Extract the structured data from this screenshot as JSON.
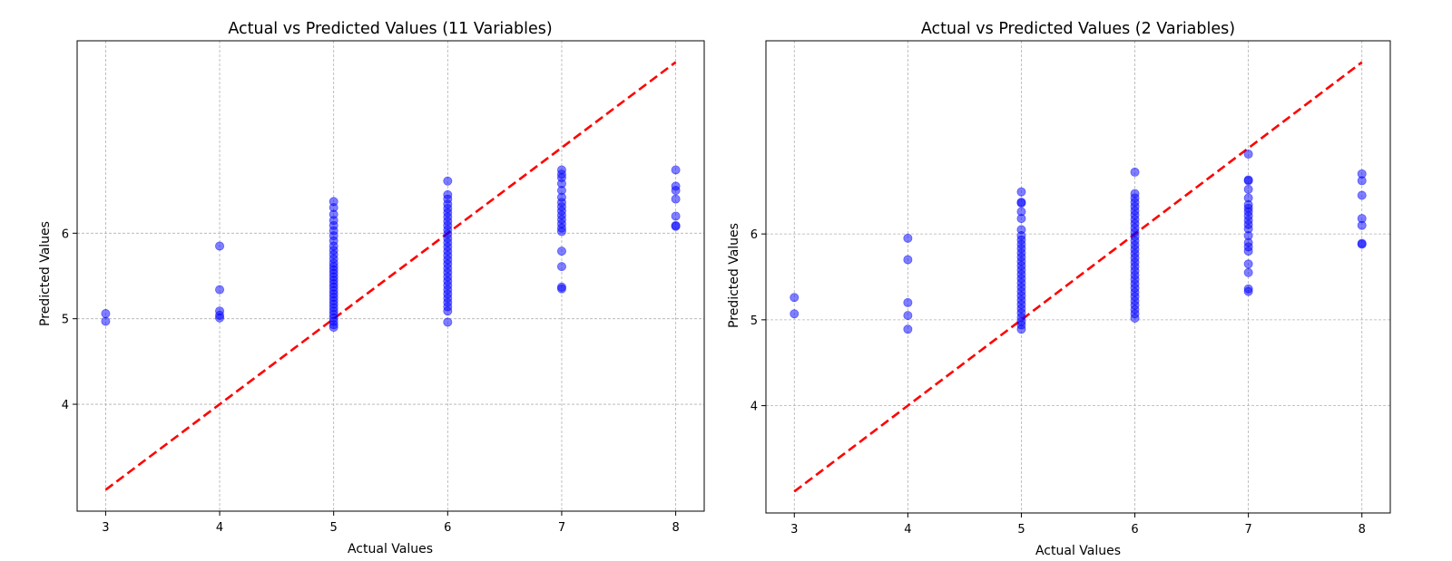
{
  "chart_data": [
    {
      "type": "scatter",
      "title": "Actual vs Predicted Values (11 Variables)",
      "xlabel": "Actual Values",
      "ylabel": "Predicted Values",
      "xlim": [
        2.75,
        8.25
      ],
      "ylim": [
        2.75,
        8.25
      ],
      "xticks": [
        3,
        4,
        5,
        6,
        7,
        8
      ],
      "yticks": [
        4,
        5,
        6
      ],
      "grid": true,
      "point_color": "#0000ff",
      "line_color": "#ff0000",
      "reference_line": {
        "style": "dashed",
        "from": [
          3,
          3
        ],
        "to": [
          8,
          8
        ]
      },
      "series": [
        {
          "points": [
            [
              3,
              5.06
            ],
            [
              3,
              4.97
            ],
            [
              4,
              5.85
            ],
            [
              4,
              5.34
            ],
            [
              4,
              5.09
            ],
            [
              4,
              5.04
            ],
            [
              4,
              5.01
            ],
            [
              5,
              6.37
            ],
            [
              5,
              6.3
            ],
            [
              5,
              6.22
            ],
            [
              5,
              6.15
            ],
            [
              5,
              6.09
            ],
            [
              5,
              6.03
            ],
            [
              5,
              5.97
            ],
            [
              5,
              5.91
            ],
            [
              5,
              5.85
            ],
            [
              5,
              5.8
            ],
            [
              5,
              5.75
            ],
            [
              5,
              5.7
            ],
            [
              5,
              5.65
            ],
            [
              5,
              5.61
            ],
            [
              5,
              5.57
            ],
            [
              5,
              5.53
            ],
            [
              5,
              5.49
            ],
            [
              5,
              5.45
            ],
            [
              5,
              5.41
            ],
            [
              5,
              5.37
            ],
            [
              5,
              5.33
            ],
            [
              5,
              5.29
            ],
            [
              5,
              5.25
            ],
            [
              5,
              5.21
            ],
            [
              5,
              5.17
            ],
            [
              5,
              5.13
            ],
            [
              5,
              5.09
            ],
            [
              5,
              5.05
            ],
            [
              5,
              5.01
            ],
            [
              5,
              4.97
            ],
            [
              5,
              4.93
            ],
            [
              5,
              4.9
            ],
            [
              6,
              6.61
            ],
            [
              6,
              6.45
            ],
            [
              6,
              6.4
            ],
            [
              6,
              6.34
            ],
            [
              6,
              6.29
            ],
            [
              6,
              6.24
            ],
            [
              6,
              6.19
            ],
            [
              6,
              6.14
            ],
            [
              6,
              6.09
            ],
            [
              6,
              6.04
            ],
            [
              6,
              5.99
            ],
            [
              6,
              5.94
            ],
            [
              6,
              5.89
            ],
            [
              6,
              5.84
            ],
            [
              6,
              5.79
            ],
            [
              6,
              5.74
            ],
            [
              6,
              5.69
            ],
            [
              6,
              5.64
            ],
            [
              6,
              5.59
            ],
            [
              6,
              5.54
            ],
            [
              6,
              5.49
            ],
            [
              6,
              5.44
            ],
            [
              6,
              5.39
            ],
            [
              6,
              5.34
            ],
            [
              6,
              5.29
            ],
            [
              6,
              5.24
            ],
            [
              6,
              5.19
            ],
            [
              6,
              5.14
            ],
            [
              6,
              5.09
            ],
            [
              6,
              4.96
            ],
            [
              7,
              6.74
            ],
            [
              7,
              6.69
            ],
            [
              7,
              6.65
            ],
            [
              7,
              6.58
            ],
            [
              7,
              6.5
            ],
            [
              7,
              6.42
            ],
            [
              7,
              6.36
            ],
            [
              7,
              6.31
            ],
            [
              7,
              6.26
            ],
            [
              7,
              6.21
            ],
            [
              7,
              6.16
            ],
            [
              7,
              6.11
            ],
            [
              7,
              6.06
            ],
            [
              7,
              6.02
            ],
            [
              7,
              5.79
            ],
            [
              7,
              5.61
            ],
            [
              7,
              5.37
            ],
            [
              7,
              5.35
            ],
            [
              8,
              6.74
            ],
            [
              8,
              6.55
            ],
            [
              8,
              6.5
            ],
            [
              8,
              6.4
            ],
            [
              8,
              6.2
            ],
            [
              8,
              6.09
            ],
            [
              8,
              6.08
            ]
          ]
        }
      ]
    },
    {
      "type": "scatter",
      "title": "Actual vs Predicted Values (2 Variables)",
      "xlabel": "Actual Values",
      "ylabel": "Predicted Values",
      "xlim": [
        2.75,
        8.25
      ],
      "ylim": [
        2.75,
        8.25
      ],
      "xticks": [
        3,
        4,
        5,
        6,
        7,
        8
      ],
      "yticks": [
        4,
        5,
        6
      ],
      "grid": true,
      "point_color": "#0000ff",
      "line_color": "#ff0000",
      "reference_line": {
        "style": "dashed",
        "from": [
          3,
          3
        ],
        "to": [
          8,
          8
        ]
      },
      "series": [
        {
          "points": [
            [
              3,
              5.26
            ],
            [
              3,
              5.07
            ],
            [
              4,
              5.95
            ],
            [
              4,
              5.7
            ],
            [
              4,
              5.2
            ],
            [
              4,
              5.05
            ],
            [
              4,
              4.89
            ],
            [
              5,
              6.49
            ],
            [
              5,
              6.37
            ],
            [
              5,
              6.36
            ],
            [
              5,
              6.26
            ],
            [
              5,
              6.18
            ],
            [
              5,
              6.05
            ],
            [
              5,
              5.98
            ],
            [
              5,
              5.93
            ],
            [
              5,
              5.88
            ],
            [
              5,
              5.83
            ],
            [
              5,
              5.78
            ],
            [
              5,
              5.73
            ],
            [
              5,
              5.68
            ],
            [
              5,
              5.63
            ],
            [
              5,
              5.58
            ],
            [
              5,
              5.53
            ],
            [
              5,
              5.48
            ],
            [
              5,
              5.43
            ],
            [
              5,
              5.38
            ],
            [
              5,
              5.33
            ],
            [
              5,
              5.28
            ],
            [
              5,
              5.23
            ],
            [
              5,
              5.18
            ],
            [
              5,
              5.13
            ],
            [
              5,
              5.08
            ],
            [
              5,
              5.03
            ],
            [
              5,
              4.98
            ],
            [
              5,
              4.94
            ],
            [
              5,
              4.89
            ],
            [
              6,
              6.72
            ],
            [
              6,
              6.47
            ],
            [
              6,
              6.42
            ],
            [
              6,
              6.37
            ],
            [
              6,
              6.32
            ],
            [
              6,
              6.27
            ],
            [
              6,
              6.22
            ],
            [
              6,
              6.17
            ],
            [
              6,
              6.12
            ],
            [
              6,
              6.07
            ],
            [
              6,
              6.02
            ],
            [
              6,
              5.97
            ],
            [
              6,
              5.92
            ],
            [
              6,
              5.87
            ],
            [
              6,
              5.82
            ],
            [
              6,
              5.77
            ],
            [
              6,
              5.72
            ],
            [
              6,
              5.67
            ],
            [
              6,
              5.62
            ],
            [
              6,
              5.57
            ],
            [
              6,
              5.52
            ],
            [
              6,
              5.47
            ],
            [
              6,
              5.42
            ],
            [
              6,
              5.37
            ],
            [
              6,
              5.32
            ],
            [
              6,
              5.27
            ],
            [
              6,
              5.22
            ],
            [
              6,
              5.17
            ],
            [
              6,
              5.12
            ],
            [
              6,
              5.07
            ],
            [
              6,
              5.02
            ],
            [
              7,
              6.93
            ],
            [
              7,
              6.63
            ],
            [
              7,
              6.62
            ],
            [
              7,
              6.52
            ],
            [
              7,
              6.42
            ],
            [
              7,
              6.34
            ],
            [
              7,
              6.3
            ],
            [
              7,
              6.26
            ],
            [
              7,
              6.21
            ],
            [
              7,
              6.16
            ],
            [
              7,
              6.11
            ],
            [
              7,
              6.06
            ],
            [
              7,
              5.98
            ],
            [
              7,
              5.9
            ],
            [
              7,
              5.85
            ],
            [
              7,
              5.8
            ],
            [
              7,
              5.65
            ],
            [
              7,
              5.55
            ],
            [
              7,
              5.36
            ],
            [
              7,
              5.33
            ],
            [
              8,
              6.7
            ],
            [
              8,
              6.62
            ],
            [
              8,
              6.45
            ],
            [
              8,
              6.18
            ],
            [
              8,
              6.1
            ],
            [
              8,
              5.89
            ],
            [
              8,
              5.88
            ]
          ]
        }
      ]
    }
  ]
}
